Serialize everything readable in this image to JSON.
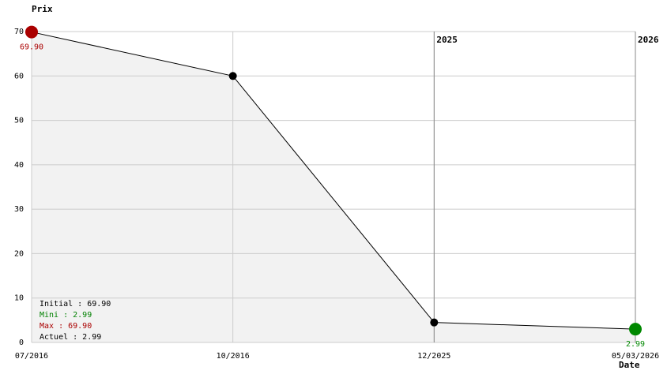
{
  "chart_data": {
    "type": "line",
    "y_label": "Prix",
    "x_label": "Date",
    "categories": [
      "07/2016",
      "10/2016",
      "12/2025",
      "05/03/2026"
    ],
    "series": [
      {
        "name": "Prix",
        "color": "#000000",
        "values": [
          69.9,
          60,
          4.5,
          2.99
        ],
        "value_labels": [
          "69.90",
          null,
          null,
          "2.99"
        ]
      }
    ],
    "ylim": [
      0,
      70
    ],
    "yticks": [
      0,
      10,
      20,
      30,
      40,
      50,
      60,
      70
    ],
    "grid": true,
    "area_color": "#f2f2f2",
    "max_color": "#aa0000",
    "min_color": "#008800",
    "year_markers": [
      {
        "label": "2025",
        "at": "12/2025"
      },
      {
        "label": "2026",
        "at": "05/03/2026"
      }
    ],
    "stats": [
      {
        "text": "Initial : 69.90",
        "color": "#000000"
      },
      {
        "text": "Mini : 2.99",
        "color": "#008000"
      },
      {
        "text": "Max : 69.90",
        "color": "#aa0000"
      },
      {
        "text": "Actuel : 2.99",
        "color": "#000000"
      }
    ]
  }
}
